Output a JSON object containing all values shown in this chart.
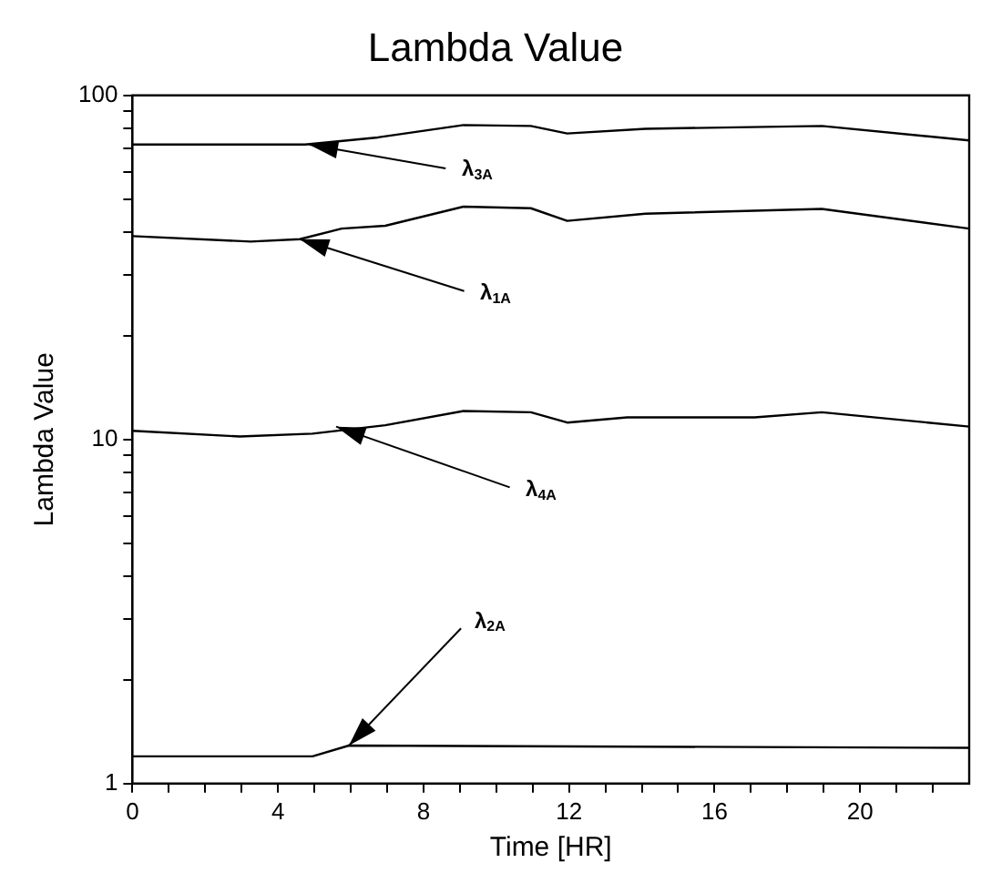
{
  "chart_data": {
    "type": "line",
    "title": "Lambda Value",
    "xlabel": "Time [HR]",
    "ylabel": "Lambda Value",
    "log": "y",
    "grid": false,
    "legend": false,
    "marker": "none",
    "line_style": "solid",
    "xlim": [
      0,
      23
    ],
    "xticks": [
      0,
      {
        "value": 1,
        "label": null
      },
      {
        "value": 2,
        "label": null
      },
      {
        "value": 3,
        "label": null
      },
      4,
      {
        "value": 5,
        "label": null
      },
      {
        "value": 6,
        "label": null
      },
      {
        "value": 7,
        "label": null
      },
      8,
      {
        "value": 9,
        "label": null
      },
      {
        "value": 10,
        "label": null
      },
      {
        "value": 11,
        "label": null
      },
      12,
      {
        "value": 13,
        "label": null
      },
      {
        "value": 14,
        "label": null
      },
      {
        "value": 15,
        "label": null
      },
      16,
      {
        "value": 17,
        "label": null
      },
      {
        "value": 18,
        "label": null
      },
      {
        "value": 19,
        "label": null
      },
      20,
      {
        "value": 21,
        "label": null
      },
      {
        "value": 22,
        "label": null
      }
    ],
    "ylim": [
      1,
      100
    ],
    "yticks": [
      1,
      {
        "value": 2,
        "label": null
      },
      {
        "value": 3,
        "label": null
      },
      {
        "value": 4,
        "label": null
      },
      {
        "value": 5,
        "label": null
      },
      {
        "value": 6,
        "label": null
      },
      {
        "value": 7,
        "label": null
      },
      {
        "value": 8,
        "label": null
      },
      {
        "value": 9,
        "label": null
      },
      10,
      {
        "value": 20,
        "label": null
      },
      {
        "value": 30,
        "label": null
      },
      {
        "value": 40,
        "label": null
      },
      {
        "value": 50,
        "label": null
      },
      {
        "value": 60,
        "label": null
      },
      {
        "value": 70,
        "label": null
      },
      {
        "value": 80,
        "label": null
      },
      {
        "value": 90,
        "label": null
      },
      100
    ],
    "series": [
      {
        "color": "#000000",
        "x": [
          0,
          4.75,
          6.75,
          9.1,
          10.95,
          11.95,
          14.1,
          18.95,
          23
        ],
        "values": [
          72,
          72,
          75.5,
          82,
          81.5,
          77.5,
          80,
          81.5,
          74
        ]
      },
      {
        "color": "#000000",
        "x": [
          0,
          3.25,
          4.6,
          5.75,
          6.95,
          9.1,
          10.95,
          11.95,
          14.1,
          18.95,
          23
        ],
        "values": [
          39,
          37.6,
          38.2,
          41,
          41.8,
          47.5,
          47,
          43.2,
          45.3,
          46.8,
          41
        ]
      },
      {
        "color": "#000000",
        "x": [
          0,
          2.95,
          4.95,
          6.95,
          9.1,
          10.95,
          11.95,
          13.6,
          17.1,
          18.95,
          23
        ],
        "values": [
          10.6,
          10.2,
          10.4,
          11,
          12.1,
          12,
          11.2,
          11.6,
          11.6,
          12,
          10.9
        ]
      },
      {
        "color": "#000000",
        "x": [
          0,
          4.95,
          5.95,
          23
        ],
        "values": [
          1.2,
          1.2,
          1.29,
          1.27
        ]
      }
    ],
    "annotations": [
      {
        "text": "λ$_{3A}$",
        "x": 4.85,
        "y": 72
      },
      {
        "text": "λ$_{1A}$",
        "x": 4.6,
        "y": 38.2
      },
      {
        "text": "λ$_{4A}$",
        "x": 5.6,
        "y": 10.9
      },
      {
        "text": "λ$_{2A}$",
        "x": 5.95,
        "y": 1.29
      }
    ]
  }
}
